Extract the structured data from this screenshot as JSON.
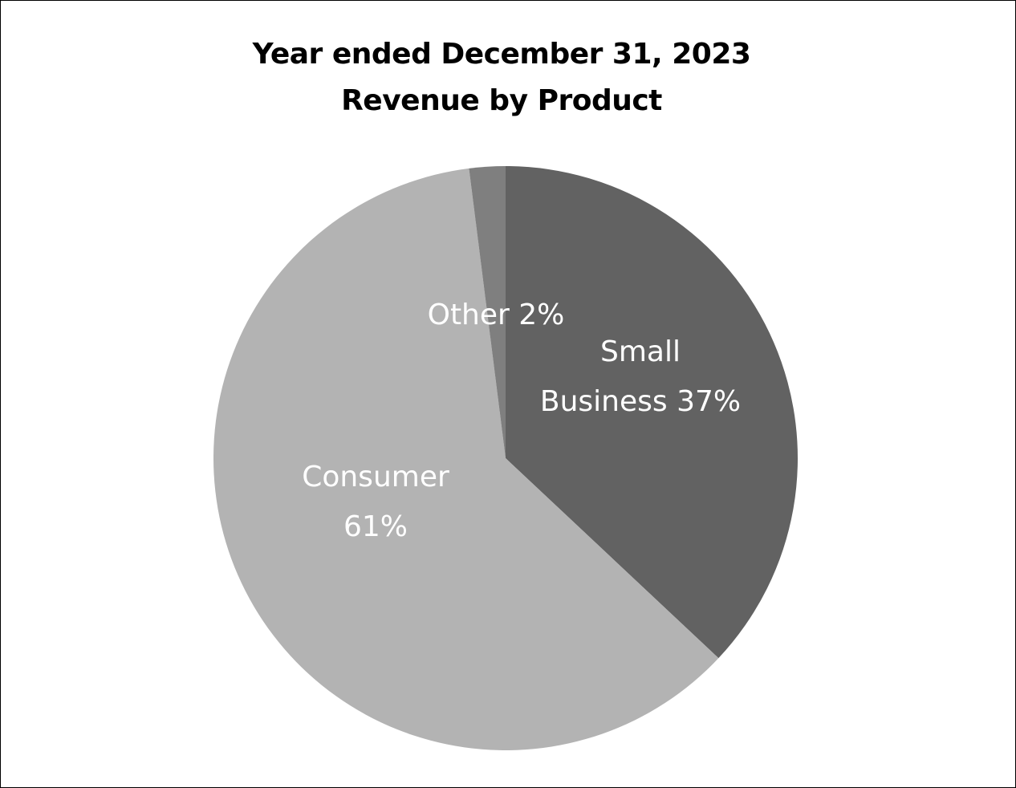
{
  "chart_data": {
    "type": "pie",
    "title_lines": [
      "Year ended December 31, 2023",
      "Revenue by Product"
    ],
    "slices": [
      {
        "name": "Small Business",
        "label_lines": [
          "Small",
          "Business 37%"
        ],
        "value": 37,
        "color": "#626262"
      },
      {
        "name": "Consumer",
        "label_lines": [
          "Consumer",
          "61%"
        ],
        "value": 61,
        "color": "#b3b3b3"
      },
      {
        "name": "Other",
        "label_lines": [
          "Other 2%"
        ],
        "value": 2,
        "color": "#7f7f7f"
      }
    ],
    "start": "12 o'clock",
    "direction": "clockwise",
    "legend": "none"
  }
}
